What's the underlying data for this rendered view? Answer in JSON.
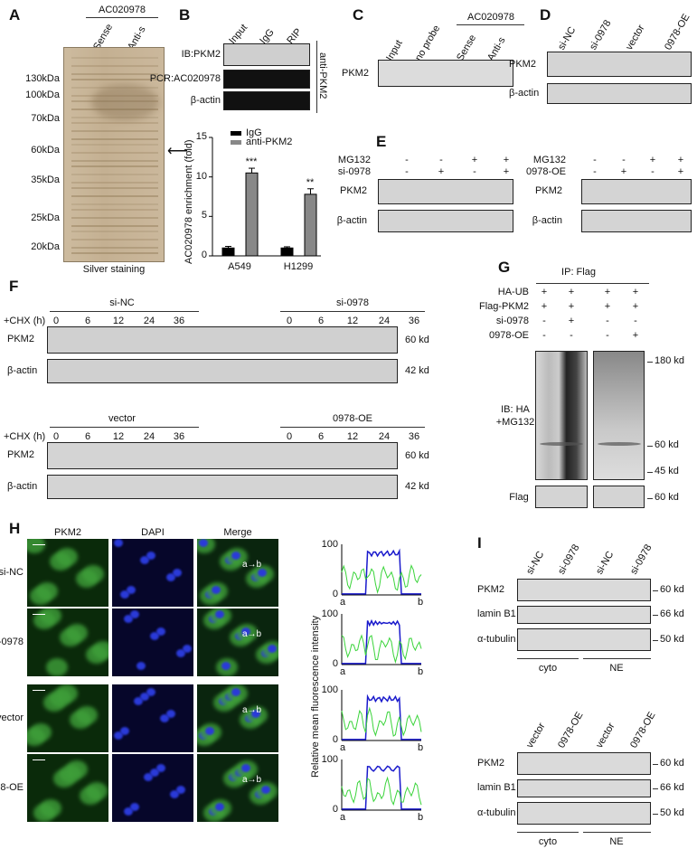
{
  "A": {
    "label": "A",
    "header": "AC020978",
    "lanes": [
      "Sense",
      "Anti-s"
    ],
    "markers": [
      "130kDa",
      "100kDa",
      "70kDa",
      "60kDa",
      "35kDa",
      "25kDa",
      "20kDa"
    ],
    "caption": "Silver staining",
    "arrow": "arrow-left-icon"
  },
  "B": {
    "label": "B",
    "lanes": [
      "Input",
      "IgG",
      "RIP"
    ],
    "rows": [
      "IB:PKM2",
      "PCR:AC020978",
      "β-actin"
    ],
    "side": "anti-PKM2"
  },
  "C": {
    "label": "C",
    "header": "AC020978",
    "lanes": [
      "Input",
      "no probe",
      "Sense",
      "Anti-s"
    ],
    "row": "PKM2"
  },
  "D": {
    "label": "D",
    "lanes": [
      "si-NC",
      "si-0978",
      "vector",
      "0978-OE"
    ],
    "rows": [
      "PKM2",
      "β-actin"
    ]
  },
  "E": {
    "label": "E",
    "left": {
      "conds": [
        "MG132",
        "si-0978"
      ],
      "signs": [
        [
          "-",
          "-",
          "+",
          "+"
        ],
        [
          "-",
          "+",
          "-",
          "+"
        ]
      ],
      "rows": [
        "PKM2",
        "β-actin"
      ]
    },
    "right": {
      "conds": [
        "MG132",
        "0978-OE"
      ],
      "signs": [
        [
          "-",
          "-",
          "+",
          "+"
        ],
        [
          "-",
          "+",
          "-",
          "+"
        ]
      ],
      "rows": [
        "PKM2",
        "β-actin"
      ]
    }
  },
  "F": {
    "label": "F",
    "chx": "+CHX (h)",
    "times": [
      "0",
      "6",
      "12",
      "24",
      "36"
    ],
    "rows": [
      "PKM2",
      "β-actin"
    ],
    "kd": [
      "60 kd",
      "42 kd"
    ],
    "top": {
      "groups": [
        "si-NC",
        "si-0978"
      ]
    },
    "bottom": {
      "groups": [
        "vector",
        "0978-OE"
      ]
    }
  },
  "G": {
    "label": "G",
    "header": "IP: Flag",
    "conds": [
      "HA-UB",
      "Flag-PKM2",
      "si-0978",
      "0978-OE"
    ],
    "signs": [
      [
        "+",
        "+",
        "+",
        "+"
      ],
      [
        "+",
        "+",
        "+",
        "+"
      ],
      [
        "-",
        "+",
        "-",
        "-"
      ],
      [
        "-",
        "-",
        "-",
        "+"
      ]
    ],
    "ib": "IB: HA",
    "mg": "+MG132",
    "kd": [
      "180 kd",
      "60 kd",
      "45 kd",
      "60 kd"
    ],
    "flag": "Flag"
  },
  "H": {
    "label": "H",
    "cols": [
      "PKM2",
      "DAPI",
      "Merge"
    ],
    "rows": [
      "si-NC",
      "si-0978",
      "vector",
      "0978-OE"
    ],
    "ylabel": "Relative mean fluorescence intensity",
    "yticks": [
      "100",
      "0"
    ],
    "points": [
      "a",
      "b"
    ]
  },
  "I": {
    "label": "I",
    "top": {
      "lanes": [
        "si-NC",
        "si-0978",
        "si-NC",
        "si-0978"
      ]
    },
    "bottom": {
      "lanes": [
        "vector",
        "0978-OE",
        "vector",
        "0978-OE"
      ]
    },
    "rows": [
      "PKM2",
      "lamin B1",
      "α-tubulin"
    ],
    "kd": [
      "60 kd",
      "66 kd",
      "50 kd"
    ],
    "fractions": [
      "cyto",
      "NE"
    ]
  },
  "chart_data": {
    "type": "bar",
    "categories": [
      "A549",
      "H1299"
    ],
    "series": [
      {
        "name": "IgG",
        "values": [
          1.0,
          1.0
        ],
        "errors": [
          0.2,
          0.15
        ],
        "color": "#000000"
      },
      {
        "name": "anti-PKM2",
        "values": [
          10.5,
          7.8
        ],
        "errors": [
          0.6,
          0.7
        ],
        "color": "#888888"
      }
    ],
    "significance": [
      "***",
      "**"
    ],
    "ylabel": "AC020978 enrichment (fold)",
    "ylim": [
      0,
      15
    ],
    "yticks": [
      "0",
      "5",
      "10",
      "15"
    ],
    "legend": "top-left"
  }
}
